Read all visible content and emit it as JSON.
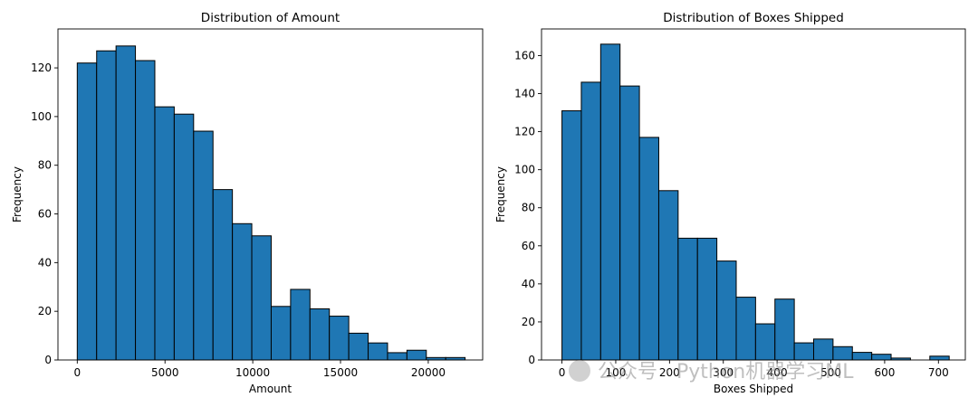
{
  "chart_data": [
    {
      "type": "bar",
      "title": "Distribution of Amount",
      "xlabel": "Amount",
      "ylabel": "Frequency",
      "xlim": [
        -1100,
        23100
      ],
      "ylim": [
        0,
        136
      ],
      "bin_edges": [
        0,
        1105,
        2210,
        3315,
        4420,
        5525,
        6630,
        7735,
        8840,
        9945,
        11050,
        12155,
        13260,
        14365,
        15470,
        16575,
        17680,
        18785,
        19890,
        20995,
        22100
      ],
      "values": [
        122,
        127,
        129,
        123,
        104,
        101,
        94,
        70,
        56,
        51,
        22,
        29,
        21,
        18,
        11,
        7,
        3,
        4,
        1,
        1
      ],
      "xticks": [
        0,
        5000,
        10000,
        15000,
        20000
      ],
      "yticks": [
        0,
        20,
        40,
        60,
        80,
        100,
        120
      ]
    },
    {
      "type": "bar",
      "title": "Distribution of Boxes Shipped",
      "xlabel": "Boxes Shipped",
      "ylabel": "Frequency",
      "xlim": [
        -38,
        750
      ],
      "ylim": [
        0,
        174
      ],
      "bin_edges": [
        0,
        36,
        72,
        108,
        144,
        180,
        216,
        252,
        288,
        324,
        360,
        396,
        432,
        468,
        504,
        540,
        576,
        612,
        648,
        684,
        720
      ],
      "values": [
        131,
        146,
        166,
        144,
        117,
        89,
        64,
        64,
        52,
        33,
        19,
        32,
        9,
        11,
        7,
        4,
        3,
        1,
        0,
        2
      ],
      "xticks": [
        0,
        100,
        200,
        300,
        400,
        500,
        600,
        700
      ],
      "yticks": [
        0,
        20,
        40,
        60,
        80,
        100,
        120,
        140,
        160
      ]
    }
  ],
  "watermark": {
    "text": "公众号 · Python机器学习ML"
  }
}
